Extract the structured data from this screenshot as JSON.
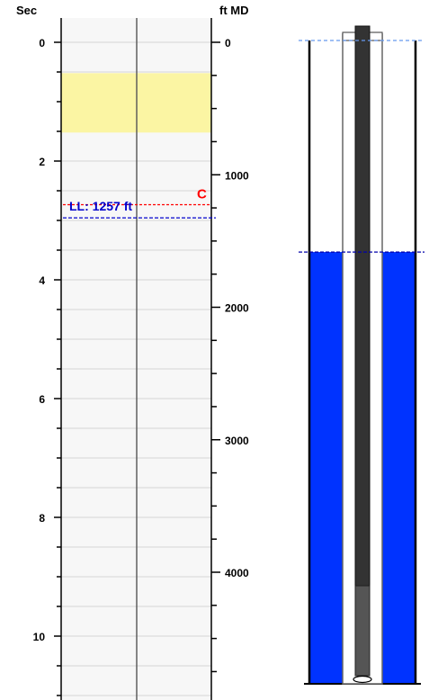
{
  "chart_data": {
    "type": "well-schematic",
    "time_axis": {
      "label": "Sec",
      "min": 0,
      "max": 11,
      "ticks": [
        0,
        2,
        4,
        6,
        8,
        10
      ],
      "tick_labels": [
        "0",
        "2",
        "4",
        "6",
        "8",
        "10"
      ]
    },
    "depth_axis": {
      "label": "ft MD",
      "min": 0,
      "max": 4850,
      "ticks": [
        0,
        1000,
        2000,
        3000,
        4000
      ],
      "tick_labels": [
        "0",
        "1000",
        "2000",
        "3000",
        "4000"
      ]
    },
    "highlight_band": {
      "start_sec": 0.52,
      "end_sec": 1.52,
      "color": "#fbf5a3"
    },
    "liquid_level": {
      "label": "LL: 1257 ft",
      "depth_ft": 1257,
      "color": "#0000cc"
    },
    "collar_marker": {
      "label": "C",
      "time_sec": 2.72,
      "color": "#ff0000"
    },
    "wellbore": {
      "fluid_level_ft": 1257,
      "fluid_color": "#0033ff",
      "tubing_color": "#333333",
      "pump_depth_ft": 3810,
      "total_depth_ft": 4790
    },
    "colors": {
      "panel_background": "#f7f7f7",
      "grid": "#d6d6d6",
      "surface_line": "#6699ee"
    }
  }
}
